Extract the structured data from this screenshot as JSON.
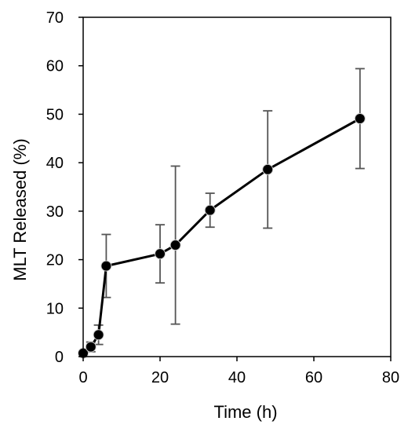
{
  "chart_data": {
    "type": "line",
    "title": "",
    "xlabel": "Time (h)",
    "ylabel": "MLT Released (%)",
    "xlim": [
      0,
      80
    ],
    "ylim": [
      0,
      70
    ],
    "xticks": [
      "0",
      "20",
      "40",
      "60",
      "80"
    ],
    "yticks": [
      "0",
      "10",
      "20",
      "30",
      "40",
      "50",
      "60",
      "70"
    ],
    "grid": false,
    "legend": "none",
    "series": [
      {
        "x": [
          0,
          2,
          4,
          6,
          20,
          24,
          33,
          48,
          72
        ],
        "y": [
          0.7,
          2.0,
          4.5,
          18.7,
          21.2,
          23.0,
          30.2,
          38.6,
          49.1
        ],
        "error": [
          0.3,
          1.0,
          2.0,
          6.5,
          6.0,
          16.3,
          3.5,
          12.1,
          10.3
        ]
      }
    ],
    "colors": {
      "line": "#000000",
      "marker": "#000000",
      "error_bar": "#555555",
      "axis": "#000000"
    }
  }
}
